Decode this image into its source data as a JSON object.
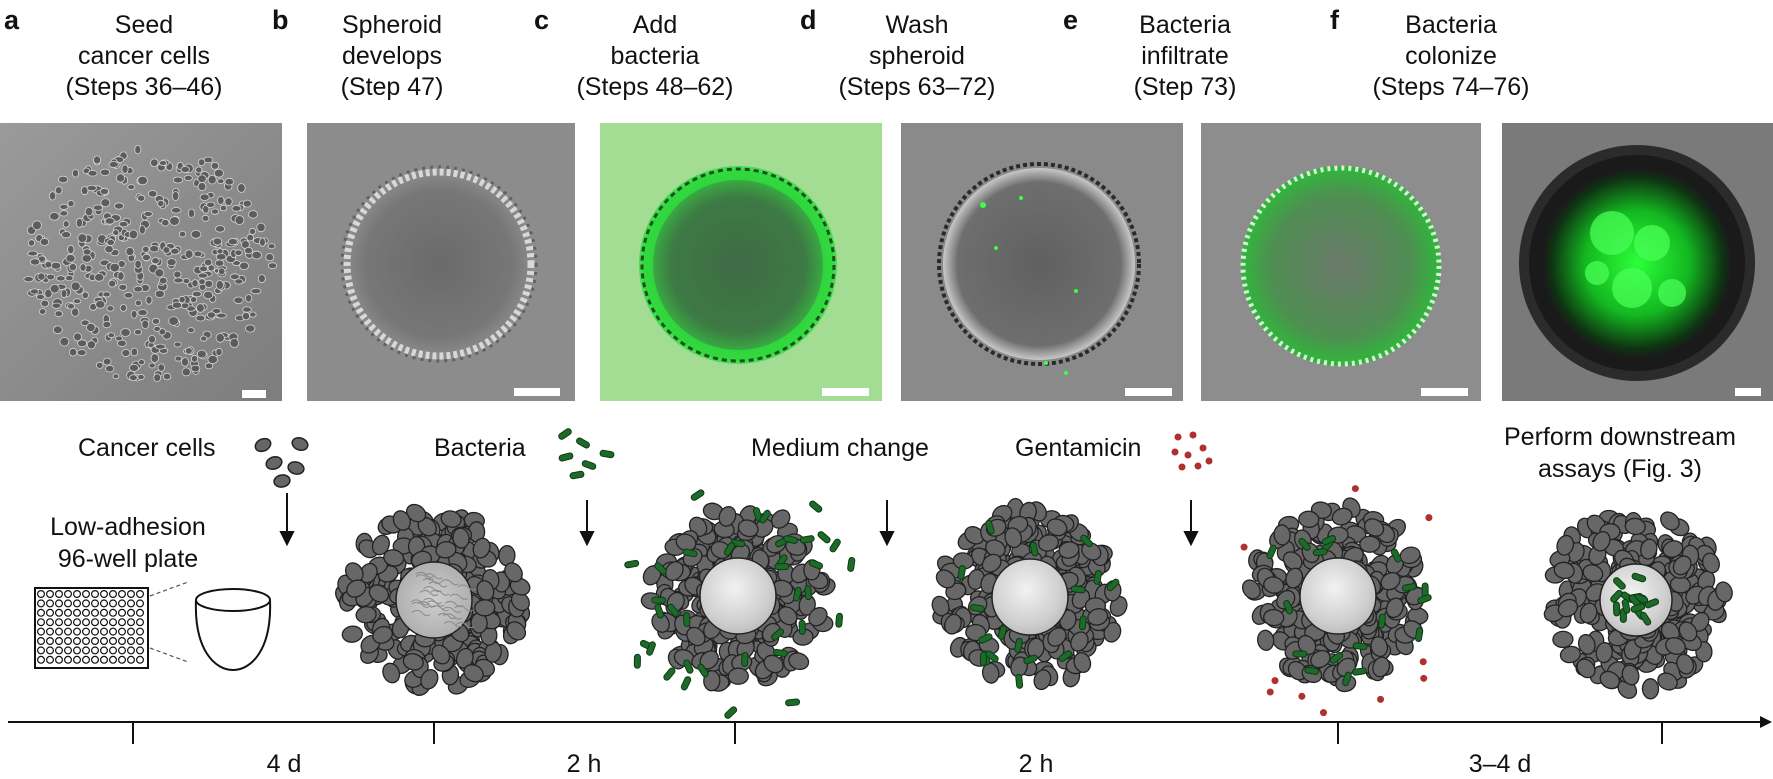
{
  "panels": [
    {
      "letter": "a",
      "title": [
        "Seed",
        "cancer cells",
        "(Steps 36–46)"
      ],
      "fluor": "none"
    },
    {
      "letter": "b",
      "title": [
        "Spheroid",
        "develops",
        "(Step 47)"
      ],
      "fluor": "none"
    },
    {
      "letter": "c",
      "title": [
        "Add",
        "bacteria",
        "(Steps 48–62)"
      ],
      "fluor": "halo"
    },
    {
      "letter": "d",
      "title": [
        "Wash",
        "spheroid",
        "(Steps 63–72)"
      ],
      "fluor": "sparse"
    },
    {
      "letter": "e",
      "title": [
        "Bacteria",
        "infiltrate",
        "(Step 73)"
      ],
      "fluor": "rim"
    },
    {
      "letter": "f",
      "title": [
        "Bacteria",
        "colonize",
        "(Steps 74–76)"
      ],
      "fluor": "core"
    }
  ],
  "labels": {
    "cancer_cells": "Cancer cells",
    "bacteria": "Bacteria",
    "medium_change": "Medium change",
    "gentamicin": "Gentamicin",
    "plate": [
      "Low-adhesion",
      "96-well plate"
    ],
    "downstream": [
      "Perform downstream",
      "assays (Fig. 3)"
    ]
  },
  "timeline": {
    "intervals": [
      "4 d",
      "2 h",
      "2 h",
      "3–4 d"
    ]
  },
  "colors": {
    "cell_fill": "#676767",
    "cell_stroke": "#222222",
    "bacteria": "#1d6b2a",
    "gentamicin": "#b03030",
    "fluorescence": "#2bd43a",
    "background_gray": "#8a8a8a"
  }
}
